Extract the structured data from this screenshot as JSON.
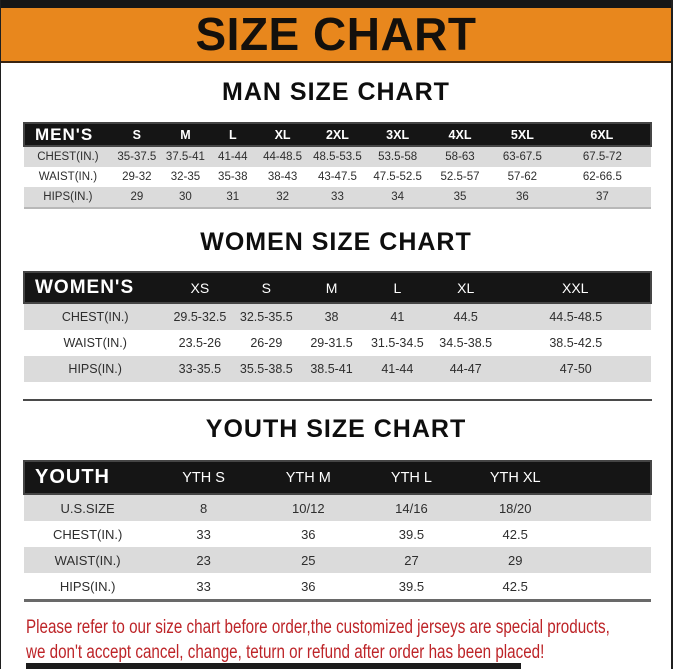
{
  "page": {
    "title": "SIZE CHART",
    "disclaimer_line1": "Please refer to our size chart before order,the customized jerseys are special products,",
    "disclaimer_line2": "we don't accept cancel, change, teturn or refund after order has been placed!"
  },
  "colors": {
    "banner_orange": "#E8871D",
    "table_header_black": "#151515",
    "row_gray": "#DBDBDB",
    "disclaimer_red": "#BD2428"
  },
  "tables": [
    {
      "id": "men",
      "section_title": "MAN SIZE CHART",
      "header_label": "MEN'S",
      "columns": [
        "S",
        "M",
        "L",
        "XL",
        "2XL",
        "3XL",
        "4XL",
        "5XL",
        "6XL"
      ],
      "rows": [
        {
          "label": "CHEST(IN.)",
          "values": [
            "35-37.5",
            "37.5-41",
            "41-44",
            "44-48.5",
            "48.5-53.5",
            "53.5-58",
            "58-63",
            "63-67.5",
            "67.5-72"
          ]
        },
        {
          "label": "WAIST(IN.)",
          "values": [
            "29-32",
            "32-35",
            "35-38",
            "38-43",
            "43-47.5",
            "47.5-52.5",
            "52.5-57",
            "57-62",
            "62-66.5"
          ]
        },
        {
          "label": "HIPS(IN.)",
          "values": [
            "29",
            "30",
            "31",
            "32",
            "33",
            "34",
            "35",
            "36",
            "37"
          ]
        }
      ]
    },
    {
      "id": "women",
      "section_title": "WOMEN SIZE CHART",
      "header_label": "WOMEN'S",
      "columns": [
        "XS",
        "S",
        "M",
        "L",
        "XL",
        "XXL"
      ],
      "rows": [
        {
          "label": "CHEST(IN.)",
          "values": [
            "29.5-32.5",
            "32.5-35.5",
            "38",
            "41",
            "44.5",
            "44.5-48.5"
          ]
        },
        {
          "label": "WAIST(IN.)",
          "values": [
            "23.5-26",
            "26-29",
            "29-31.5",
            "31.5-34.5",
            "34.5-38.5",
            "38.5-42.5"
          ]
        },
        {
          "label": "HIPS(IN.)",
          "values": [
            "33-35.5",
            "35.5-38.5",
            "38.5-41",
            "41-44",
            "44-47",
            "47-50"
          ]
        }
      ]
    },
    {
      "id": "youth",
      "section_title": "YOUTH SIZE CHART",
      "header_label": "YOUTH",
      "columns": [
        "YTH S",
        "YTH M",
        "YTH L",
        "YTH XL"
      ],
      "rows": [
        {
          "label": "U.S.SIZE",
          "values": [
            "8",
            "10/12",
            "14/16",
            "18/20"
          ]
        },
        {
          "label": "CHEST(IN.)",
          "values": [
            "33",
            "36",
            "39.5",
            "42.5"
          ]
        },
        {
          "label": "WAIST(IN.)",
          "values": [
            "23",
            "25",
            "27",
            "29"
          ]
        },
        {
          "label": "HIPS(IN.)",
          "values": [
            "33",
            "36",
            "39.5",
            "42.5"
          ]
        }
      ]
    }
  ]
}
